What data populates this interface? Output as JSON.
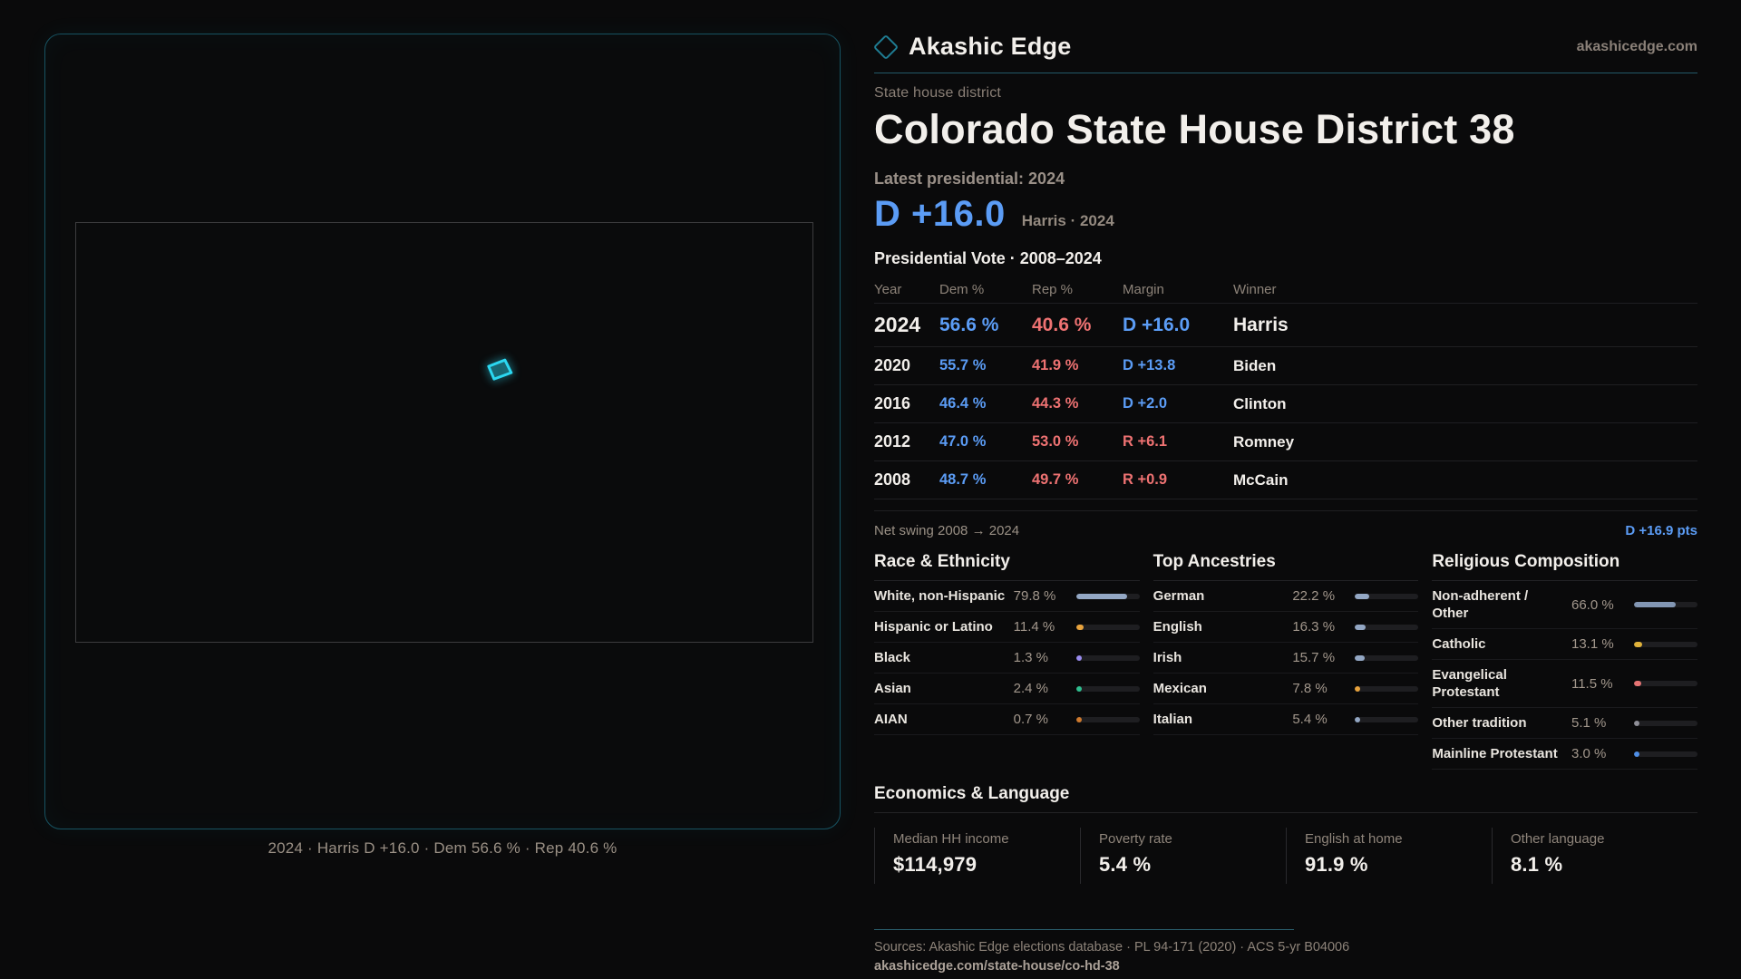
{
  "brand": {
    "name": "Akashic Edge",
    "domain": "akashicedge.com"
  },
  "map": {
    "caption": "2024 · Harris D +16.0 · Dem 56.6 % · Rep 40.6 %"
  },
  "header": {
    "kicker": "State house district",
    "title": "Colorado State House District 38",
    "latest_label": "Latest presidential: 2024",
    "margin_value": "D +16.0",
    "margin_detail": "Harris · 2024"
  },
  "table": {
    "title": "Presidential Vote · 2008–2024",
    "columns": [
      "Year",
      "Dem %",
      "Rep %",
      "Margin",
      "Winner"
    ],
    "rows": [
      {
        "year": "2024",
        "dem": "56.6 %",
        "rep": "40.6 %",
        "margin": "D +16.0",
        "margin_party": "d",
        "winner": "Harris",
        "featured": true
      },
      {
        "year": "2020",
        "dem": "55.7 %",
        "rep": "41.9 %",
        "margin": "D +13.8",
        "margin_party": "d",
        "winner": "Biden",
        "featured": false
      },
      {
        "year": "2016",
        "dem": "46.4 %",
        "rep": "44.3 %",
        "margin": "D +2.0",
        "margin_party": "d",
        "winner": "Clinton",
        "featured": false
      },
      {
        "year": "2012",
        "dem": "47.0 %",
        "rep": "53.0 %",
        "margin": "R +6.1",
        "margin_party": "r",
        "winner": "Romney",
        "featured": false
      },
      {
        "year": "2008",
        "dem": "48.7 %",
        "rep": "49.7 %",
        "margin": "R +0.9",
        "margin_party": "r",
        "winner": "McCain",
        "featured": false
      }
    ],
    "net_swing_label": "Net swing 2008 → 2024",
    "net_swing_value": "D +16.9 pts"
  },
  "demographics": [
    {
      "title": "Race & Ethnicity",
      "rows": [
        {
          "label": "White, non-Hispanic",
          "value": "79.8 %",
          "pct": 79.8,
          "color": "#93a7c4"
        },
        {
          "label": "Hispanic or Latino",
          "value": "11.4 %",
          "pct": 11.4,
          "color": "#e8a33d"
        },
        {
          "label": "Black",
          "value": "1.3 %",
          "pct": 1.3,
          "color": "#9a8cf0"
        },
        {
          "label": "Asian",
          "value": "2.4 %",
          "pct": 2.4,
          "color": "#2fbf8f"
        },
        {
          "label": "AIAN",
          "value": "0.7 %",
          "pct": 0.7,
          "color": "#cf7a2e"
        }
      ]
    },
    {
      "title": "Top Ancestries",
      "rows": [
        {
          "label": "German",
          "value": "22.2 %",
          "pct": 22.2,
          "color": "#93a7c4"
        },
        {
          "label": "English",
          "value": "16.3 %",
          "pct": 16.3,
          "color": "#93a7c4"
        },
        {
          "label": "Irish",
          "value": "15.7 %",
          "pct": 15.7,
          "color": "#93a7c4"
        },
        {
          "label": "Mexican",
          "value": "7.8 %",
          "pct": 7.8,
          "color": "#e8a33d"
        },
        {
          "label": "Italian",
          "value": "5.4 %",
          "pct": 5.4,
          "color": "#93a7c4"
        }
      ]
    },
    {
      "title": "Religious Composition",
      "rows": [
        {
          "label": "Non-adherent / Other",
          "value": "66.0 %",
          "pct": 66.0,
          "color": "#8296b3"
        },
        {
          "label": "Catholic",
          "value": "13.1 %",
          "pct": 13.1,
          "color": "#e0b23a"
        },
        {
          "label": "Evangelical Protestant",
          "value": "11.5 %",
          "pct": 11.5,
          "color": "#e57373"
        },
        {
          "label": "Other tradition",
          "value": "5.1 %",
          "pct": 5.1,
          "color": "#8f8f98"
        },
        {
          "label": "Mainline Protestant",
          "value": "3.0 %",
          "pct": 3.0,
          "color": "#4f8fe8"
        }
      ]
    }
  ],
  "economics": {
    "title": "Economics & Language",
    "stats": [
      {
        "label": "Median HH income",
        "value": "$114,979"
      },
      {
        "label": "Poverty rate",
        "value": "5.4 %"
      },
      {
        "label": "English at home",
        "value": "91.9 %"
      },
      {
        "label": "Other language",
        "value": "8.1 %"
      }
    ]
  },
  "footer": {
    "sources": "Sources: Akashic Edge elections database · PL 94-171 (2020) · ACS 5-yr B04006",
    "permalink": "akashicedge.com/state-house/co-hd-38"
  }
}
